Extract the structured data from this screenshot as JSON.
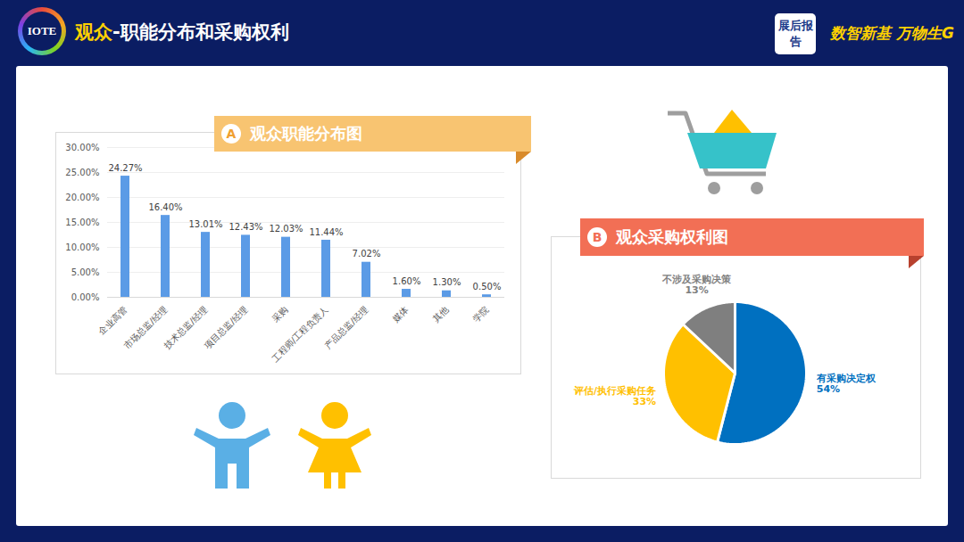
{
  "header": {
    "logo": "IOTE",
    "title": "观众-职能分布和采购权利",
    "badge": "展后报告",
    "slogan": "数智新基 万物生G"
  },
  "chart_data": [
    {
      "type": "bar",
      "title": "观众职能分布图",
      "annotations": [
        "A"
      ],
      "categories": [
        "企业高管",
        "市场总监/经理",
        "技术总监/经理",
        "项目总监/经理",
        "采购",
        "工程师/工程负责人",
        "产品总监/经理",
        "媒体",
        "其他",
        "学院"
      ],
      "values": [
        24.27,
        16.4,
        13.01,
        12.43,
        12.03,
        11.44,
        7.02,
        1.6,
        1.3,
        0.5
      ],
      "value_labels": [
        "24.27%",
        "16.40%",
        "13.01%",
        "12.43%",
        "12.03%",
        "11.44%",
        "7.02%",
        "1.60%",
        "1.30%",
        "0.50%"
      ],
      "color": "#5b9be6",
      "ylim": [
        0,
        30
      ],
      "yticks": [
        {
          "value": 0,
          "label": "0.00%"
        },
        {
          "value": 5,
          "label": "5.00%"
        },
        {
          "value": 10,
          "label": "10.00%"
        },
        {
          "value": 15,
          "label": "15.00%"
        },
        {
          "value": 20,
          "label": "20.00%"
        },
        {
          "value": 25,
          "label": "25.00%"
        },
        {
          "value": 30,
          "label": "30.00%"
        }
      ],
      "grid": true,
      "data_labels": true
    },
    {
      "type": "pie",
      "title": "观众采购权利图",
      "annotations": [
        "B"
      ],
      "categories": [
        "有采购决定权",
        "评估/执行采购任务",
        "不涉及采购决策"
      ],
      "values": [
        54,
        33,
        13
      ],
      "value_labels": [
        "54%",
        "33%",
        "13%"
      ],
      "colors": [
        "#0070c0",
        "#ffc000",
        "#7f7f7f"
      ],
      "data_labels": true
    }
  ]
}
